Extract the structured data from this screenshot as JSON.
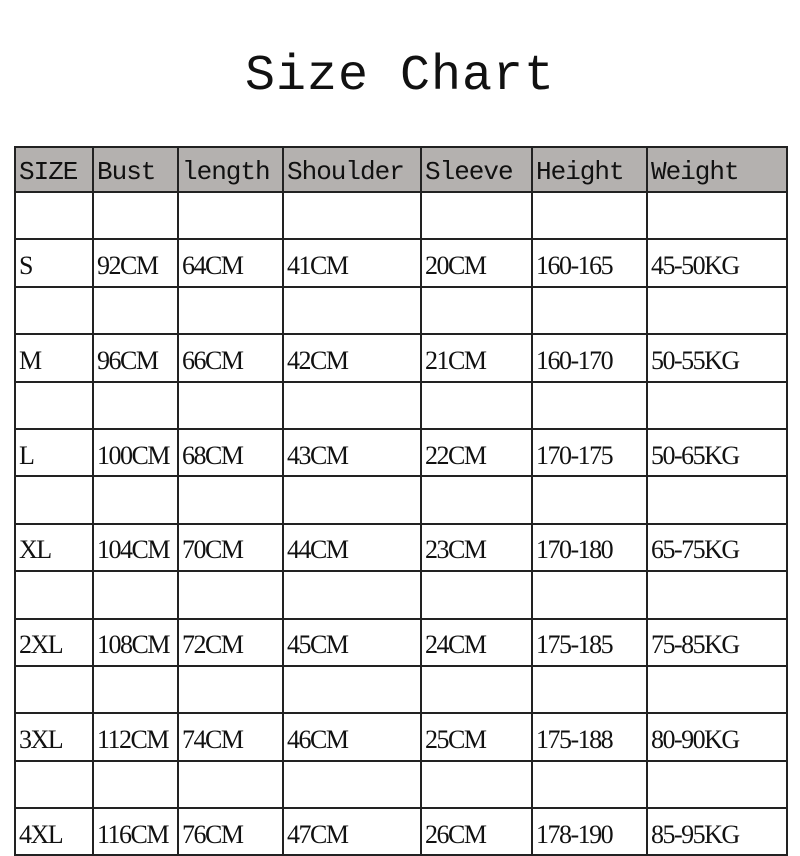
{
  "title": "Size Chart",
  "header_bg": "#b4b1af",
  "columns": [
    "SIZE",
    "Bust",
    "length",
    "Shoulder",
    "Sleeve",
    "Height",
    "Weight"
  ],
  "rows": [
    [
      "S",
      "92CM",
      "64CM",
      "41CM",
      "20CM",
      "160-165",
      "45-50KG"
    ],
    [
      "M",
      "96CM",
      "66CM",
      "42CM",
      "21CM",
      "160-170",
      "50-55KG"
    ],
    [
      "L",
      "100CM",
      "68CM",
      "43CM",
      "22CM",
      "170-175",
      "50-65KG"
    ],
    [
      "XL",
      "104CM",
      "70CM",
      "44CM",
      "23CM",
      "170-180",
      "65-75KG"
    ],
    [
      "2XL",
      "108CM",
      "72CM",
      "45CM",
      "24CM",
      "175-185",
      "75-85KG"
    ],
    [
      "3XL",
      "112CM",
      "74CM",
      "46CM",
      "25CM",
      "175-188",
      "80-90KG"
    ],
    [
      "4XL",
      "116CM",
      "76CM",
      "47CM",
      "26CM",
      "178-190",
      "85-95KG"
    ]
  ]
}
